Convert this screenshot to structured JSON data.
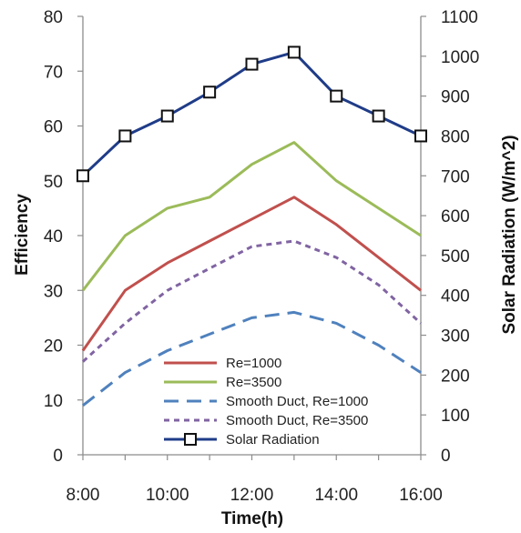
{
  "chart_data": {
    "type": "line",
    "x": [
      "8:00",
      "9:00",
      "10:00",
      "11:00",
      "12:00",
      "13:00",
      "14:00",
      "15:00",
      "16:00"
    ],
    "x_tick_labels": [
      "8:00",
      "10:00",
      "12:00",
      "14:00",
      "16:00"
    ],
    "xlabel": "Time(h)",
    "ylabel": "Efficiency",
    "ylim": [
      0,
      80
    ],
    "y_ticks": [
      "0",
      "10",
      "20",
      "30",
      "40",
      "50",
      "60",
      "70",
      "80"
    ],
    "y2label": "Solar Radiation (W/m^2)",
    "y2lim": [
      0,
      1100
    ],
    "y2_ticks": [
      "0",
      "100",
      "200",
      "300",
      "400",
      "500",
      "600",
      "700",
      "800",
      "900",
      "1000",
      "1100"
    ],
    "grid": false,
    "legend_position": "bottom-center",
    "series": [
      {
        "name": "Re=1000",
        "axis": "left",
        "color": "#c0504d",
        "style": "solid",
        "values": [
          19,
          30,
          35,
          39,
          43,
          47,
          42,
          36,
          30
        ]
      },
      {
        "name": "Re=3500",
        "axis": "left",
        "color": "#9bbb59",
        "style": "solid",
        "values": [
          30,
          40,
          45,
          47,
          53,
          57,
          50,
          45,
          40
        ]
      },
      {
        "name": "Smooth Duct, Re=1000",
        "axis": "left",
        "color": "#4f81bd",
        "style": "long-dash",
        "values": [
          9,
          15,
          19,
          22,
          25,
          26,
          24,
          20,
          15
        ]
      },
      {
        "name": "Smooth Duct, Re=3500",
        "axis": "left",
        "color": "#8064a2",
        "style": "short-dash",
        "values": [
          17,
          24,
          30,
          34,
          38,
          39,
          36,
          31,
          24
        ]
      },
      {
        "name": "Solar Radiation",
        "axis": "right",
        "color": "#1f3c88",
        "style": "solid-square-markers",
        "values": [
          700,
          800,
          850,
          910,
          980,
          1010,
          900,
          850,
          800
        ]
      }
    ]
  }
}
